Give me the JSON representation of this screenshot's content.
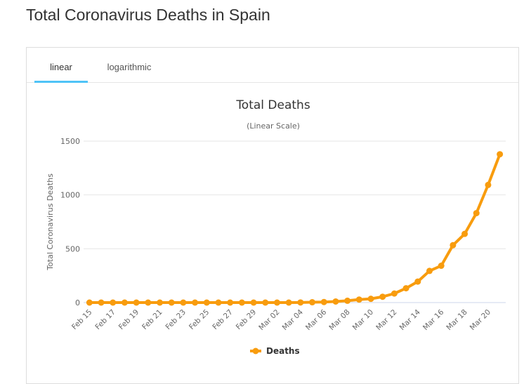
{
  "page": {
    "title": "Total Coronavirus Deaths in Spain"
  },
  "tabs": [
    {
      "label": "linear",
      "active": true
    },
    {
      "label": "logarithmic",
      "active": false
    }
  ],
  "colors": {
    "series": "#f89c0e",
    "tab_indicator": "#4fc3f7",
    "grid": "#e6e6e6"
  },
  "chart_data": {
    "type": "line",
    "title": "Total Deaths",
    "subtitle": "(Linear Scale)",
    "xlabel": "",
    "ylabel": "Total Coronavirus Deaths",
    "ylim": [
      0,
      1500
    ],
    "yticks": [
      0,
      500,
      1000,
      1500
    ],
    "grid": true,
    "legend": "bottom-center",
    "categories": [
      "Feb 15",
      "Feb 16",
      "Feb 17",
      "Feb 18",
      "Feb 19",
      "Feb 20",
      "Feb 21",
      "Feb 22",
      "Feb 23",
      "Feb 24",
      "Feb 25",
      "Feb 26",
      "Feb 27",
      "Feb 28",
      "Feb 29",
      "Mar 01",
      "Mar 02",
      "Mar 03",
      "Mar 04",
      "Mar 05",
      "Mar 06",
      "Mar 07",
      "Mar 08",
      "Mar 09",
      "Mar 10",
      "Mar 11",
      "Mar 12",
      "Mar 13",
      "Mar 14",
      "Mar 15",
      "Mar 16",
      "Mar 17",
      "Mar 18",
      "Mar 19",
      "Mar 20",
      "Mar 21"
    ],
    "tick_labels": [
      "Feb 15",
      "Feb 17",
      "Feb 19",
      "Feb 21",
      "Feb 23",
      "Feb 25",
      "Feb 27",
      "Feb 29",
      "Mar 02",
      "Mar 04",
      "Mar 06",
      "Mar 08",
      "Mar 10",
      "Mar 12",
      "Mar 14",
      "Mar 16",
      "Mar 18",
      "Mar 20"
    ],
    "series": [
      {
        "name": "Deaths",
        "values": [
          0,
          0,
          0,
          0,
          0,
          0,
          0,
          0,
          0,
          0,
          0,
          0,
          0,
          0,
          0,
          0,
          0,
          0,
          1,
          3,
          5,
          10,
          17,
          28,
          35,
          54,
          84,
          133,
          195,
          294,
          342,
          533,
          638,
          831,
          1093,
          1378
        ]
      }
    ]
  }
}
